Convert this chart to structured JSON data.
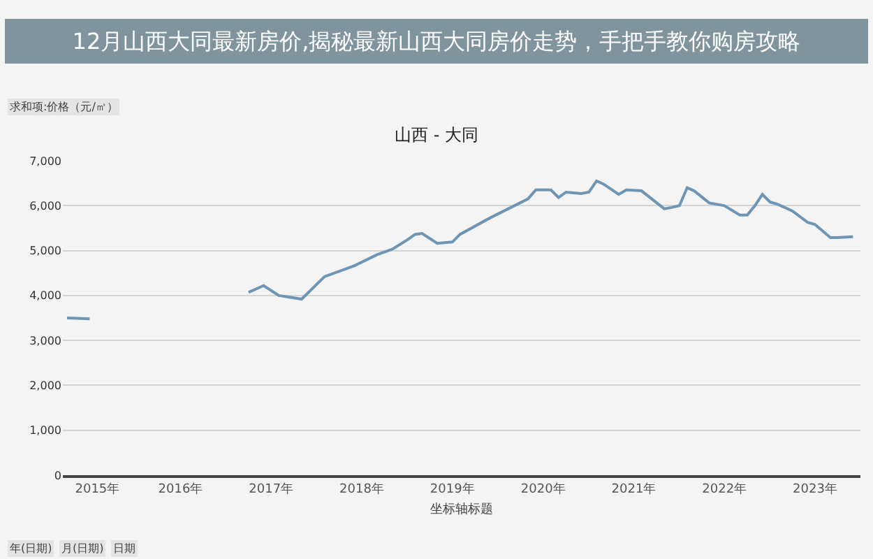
{
  "chart_data": {
    "type": "line",
    "title": "山西 - 大同",
    "xlabel": "坐标轴标题",
    "x": [
      "2015-04",
      "2015-07",
      "2015-10",
      "2016-01",
      "2017-04",
      "2017-06",
      "2017-08",
      "2017-11",
      "2018-02",
      "2018-06",
      "2018-09",
      "2018-11",
      "2019-01",
      "2019-02",
      "2019-03",
      "2019-05",
      "2019-07",
      "2019-08",
      "2019-12",
      "2020-05",
      "2020-06",
      "2020-08",
      "2020-09",
      "2020-10",
      "2020-12",
      "2021-01",
      "2021-02",
      "2021-03",
      "2021-05",
      "2021-06",
      "2021-08",
      "2021-11",
      "2021-12",
      "2022-01",
      "2022-02",
      "2022-03",
      "2022-05",
      "2022-07",
      "2022-09",
      "2022-10",
      "2022-11",
      "2022-12",
      "2023-01",
      "2023-02",
      "2023-04",
      "2023-06",
      "2023-07",
      "2023-09",
      "2023-10",
      "2023-12"
    ],
    "series": [
      {
        "color": "#6f95b4",
        "values": [
          3500,
          3480,
          null,
          null,
          4070,
          4220,
          4000,
          3920,
          4420,
          4660,
          4910,
          5030,
          5240,
          5360,
          5380,
          5160,
          5190,
          5360,
          5730,
          6150,
          6350,
          6350,
          6180,
          6300,
          6270,
          6300,
          6550,
          6480,
          6250,
          6350,
          6330,
          5930,
          5960,
          6000,
          6400,
          6330,
          6060,
          6000,
          5790,
          5790,
          6000,
          6250,
          6080,
          6030,
          5880,
          5630,
          5580,
          5290,
          5290,
          5310
        ]
      }
    ],
    "xlim": [
      "2015-03-15",
      "2023-12-31"
    ],
    "xticks": [
      {
        "value": "2015-08-01",
        "label": "2015年"
      },
      {
        "value": "2016-07-01",
        "label": "2016年"
      },
      {
        "value": "2017-07-01",
        "label": "2017年"
      },
      {
        "value": "2018-07-01",
        "label": "2018年"
      },
      {
        "value": "2019-07-01",
        "label": "2019年"
      },
      {
        "value": "2020-07-01",
        "label": "2020年"
      },
      {
        "value": "2021-07-01",
        "label": "2021年"
      },
      {
        "value": "2022-07-01",
        "label": "2022年"
      },
      {
        "value": "2023-07-01",
        "label": "2023年"
      }
    ],
    "ylim": [
      0,
      7000
    ],
    "yticks": [
      {
        "value": 0,
        "label": "0"
      },
      {
        "value": 1000,
        "label": "1,000"
      },
      {
        "value": 2000,
        "label": "2,000"
      },
      {
        "value": 3000,
        "label": "3,000"
      },
      {
        "value": 4000,
        "label": "4,000"
      },
      {
        "value": 5000,
        "label": "5,000"
      },
      {
        "value": 6000,
        "label": "6,000"
      },
      {
        "value": 7000,
        "label": "7,000"
      }
    ],
    "grid": "y",
    "marker": "none",
    "line_style": "solid",
    "annotations": [
      "12月山西大同最新房价,揭秘最新山西大同房价走势，手把手教你购房攻略",
      "求和项:价格（元/㎡）",
      "年(日期)",
      "月(日期)",
      "日期"
    ]
  }
}
